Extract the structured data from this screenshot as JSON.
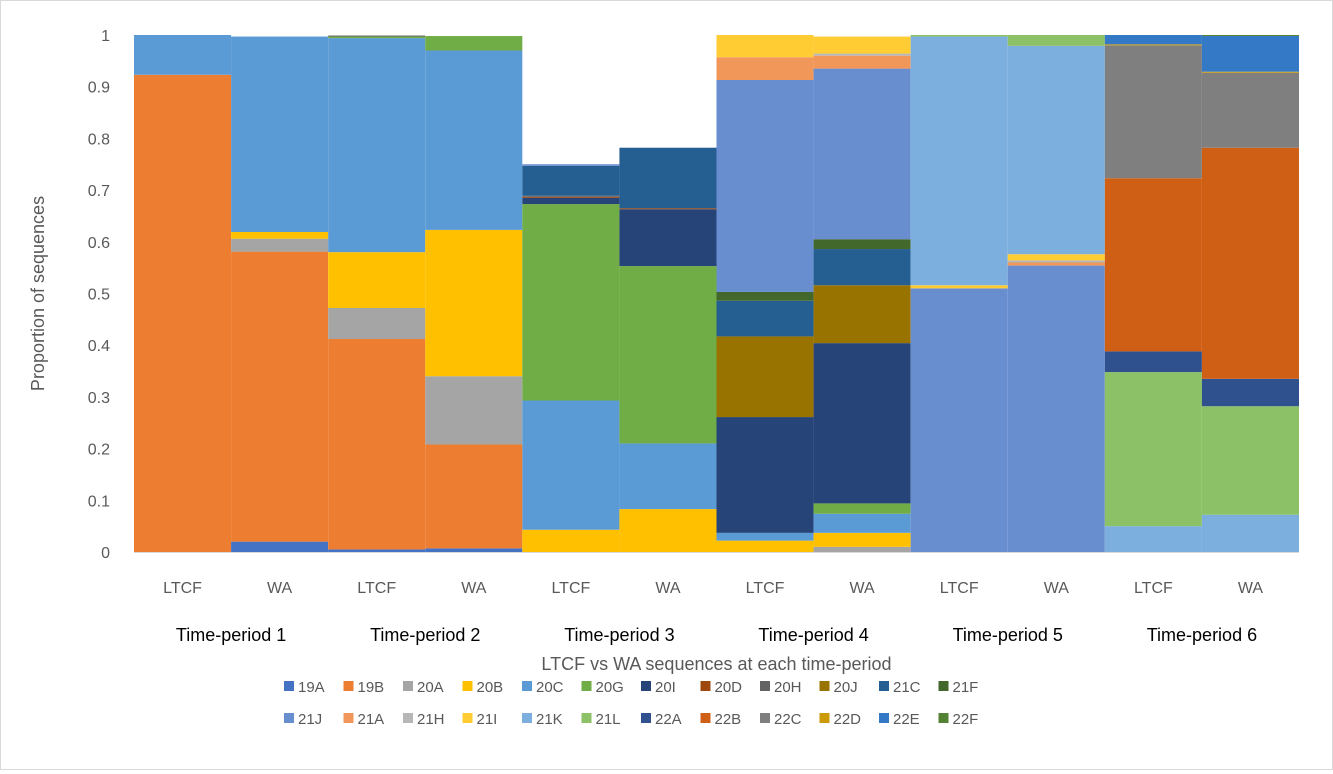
{
  "chart_data": {
    "type": "bar",
    "stacked": true,
    "normalized": true,
    "xlabel": "LTCF vs WA sequences at each time-period",
    "ylabel": "Proportion of sequences",
    "ylim": [
      0,
      1
    ],
    "yticks": [
      "0",
      "0.1",
      "0.2",
      "0.3",
      "0.4",
      "0.5",
      "0.6",
      "0.7",
      "0.8",
      "0.9",
      "1"
    ],
    "grid": false,
    "legend_position": "bottom",
    "groups": [
      "Time-period 1",
      "Time-period 2",
      "Time-period 3",
      "Time-period 4",
      "Time-period 5",
      "Time-period 6"
    ],
    "categories": [
      "LTCF",
      "WA",
      "LTCF",
      "WA",
      "LTCF",
      "WA",
      "LTCF",
      "WA",
      "LTCF",
      "WA",
      "LTCF",
      "WA"
    ],
    "series": [
      {
        "name": "19A",
        "color": "#4472C4",
        "values": [
          0,
          0.02,
          0.005,
          0.007,
          0,
          0,
          0,
          0,
          0,
          0,
          0,
          0
        ]
      },
      {
        "name": "19B",
        "color": "#ED7D31",
        "values": [
          0.923,
          0.561,
          0.407,
          0.201,
          0,
          0,
          0,
          0,
          0,
          0,
          0,
          0
        ]
      },
      {
        "name": "20A",
        "color": "#A5A5A5",
        "values": [
          0,
          0.025,
          0.06,
          0.132,
          0,
          0,
          0,
          0.01,
          0,
          0,
          0,
          0
        ]
      },
      {
        "name": "20B",
        "color": "#FFC000",
        "values": [
          0,
          0.013,
          0.108,
          0.283,
          0.043,
          0.083,
          0.022,
          0.027,
          0,
          0,
          0,
          0
        ]
      },
      {
        "name": "20C",
        "color": "#5B9BD5",
        "values": [
          0.077,
          0.378,
          0.414,
          0.347,
          0.25,
          0.127,
          0.015,
          0.037,
          0,
          0,
          0,
          0
        ]
      },
      {
        "name": "20G",
        "color": "#70AD47",
        "values": [
          0,
          0,
          0.003,
          0.028,
          0.38,
          0.343,
          0,
          0.02,
          0,
          0,
          0,
          0
        ]
      },
      {
        "name": "20I",
        "color": "#264478",
        "values": [
          0,
          0,
          0,
          0,
          0.012,
          0.11,
          0.224,
          0.31,
          0,
          0,
          0,
          0
        ]
      },
      {
        "name": "20D",
        "color": "#9E480E",
        "values": [
          0,
          0,
          0,
          0,
          0.002,
          0.002,
          0,
          0,
          0,
          0,
          0,
          0
        ]
      },
      {
        "name": "20H",
        "color": "#636363",
        "values": [
          0,
          0,
          0.002,
          0,
          0.002,
          0,
          0,
          0,
          0,
          0,
          0,
          0
        ]
      },
      {
        "name": "20J",
        "color": "#997300",
        "values": [
          0,
          0,
          0,
          0,
          0,
          0,
          0.156,
          0.112,
          0,
          0,
          0,
          0
        ]
      },
      {
        "name": "21C",
        "color": "#255E91",
        "values": [
          0,
          0,
          0,
          0,
          0.058,
          0.117,
          0.069,
          0.07,
          0,
          0,
          0,
          0
        ]
      },
      {
        "name": "21F",
        "color": "#43682B",
        "values": [
          0,
          0,
          0,
          0,
          0,
          0,
          0.017,
          0.019,
          0,
          0,
          0,
          0
        ]
      },
      {
        "name": "21J",
        "color": "#698ED0",
        "values": [
          0,
          0,
          0,
          0,
          0.003,
          0,
          0.41,
          0.33,
          0.51,
          0.554,
          0,
          0
        ]
      },
      {
        "name": "21A",
        "color": "#F1975A",
        "values": [
          0,
          0,
          0,
          0,
          0,
          0,
          0.044,
          0.025,
          0,
          0.006,
          0,
          0
        ]
      },
      {
        "name": "21H",
        "color": "#B7B7B7",
        "values": [
          0,
          0,
          0,
          0,
          0,
          0,
          0,
          0.004,
          0,
          0.004,
          0,
          0
        ]
      },
      {
        "name": "21I",
        "color": "#FFCD33",
        "values": [
          0,
          0,
          0,
          0,
          0,
          0,
          0.043,
          0.033,
          0.006,
          0.012,
          0,
          0
        ]
      },
      {
        "name": "21K",
        "color": "#7CAFDD",
        "values": [
          0,
          0,
          0,
          0,
          0,
          0,
          0,
          0,
          0.481,
          0.403,
          0.05,
          0.072
        ]
      },
      {
        "name": "21L",
        "color": "#8CC168",
        "values": [
          0,
          0,
          0,
          0,
          0,
          0,
          0,
          0,
          0.003,
          0.021,
          0.298,
          0.21
        ]
      },
      {
        "name": "22A",
        "color": "#2F528F",
        "values": [
          0,
          0,
          0,
          0,
          0,
          0,
          0,
          0,
          0,
          0,
          0.04,
          0.053
        ]
      },
      {
        "name": "22B",
        "color": "#D05F16",
        "values": [
          0,
          0,
          0,
          0,
          0,
          0,
          0,
          0,
          0,
          0,
          0.335,
          0.447
        ]
      },
      {
        "name": "22C",
        "color": "#7F7F7F",
        "values": [
          0,
          0,
          0,
          0,
          0,
          0,
          0,
          0,
          0,
          0,
          0.257,
          0.145
        ]
      },
      {
        "name": "22D",
        "color": "#CC9A06",
        "values": [
          0,
          0,
          0,
          0,
          0,
          0,
          0,
          0,
          0,
          0,
          0.002,
          0.002
        ]
      },
      {
        "name": "22E",
        "color": "#3479C5",
        "values": [
          0,
          0,
          0,
          0,
          0,
          0,
          0,
          0,
          0,
          0,
          0.018,
          0.069
        ]
      },
      {
        "name": "22F",
        "color": "#548235",
        "values": [
          0,
          0,
          0,
          0,
          0,
          0,
          0,
          0,
          0,
          0,
          0,
          0.002
        ]
      }
    ]
  }
}
